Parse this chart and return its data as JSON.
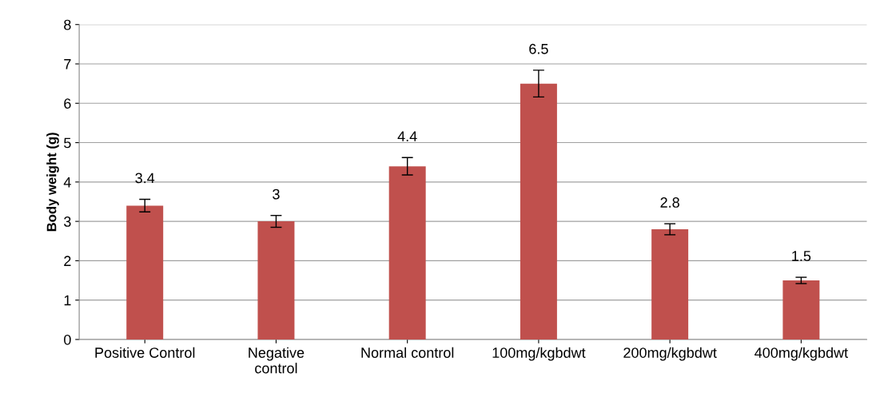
{
  "chart_data": {
    "type": "bar",
    "ylabel": "Body weight (g)",
    "categories": [
      "Positive Control",
      "Negative\ncontrol",
      "Normal control",
      "100mg/kgbdwt",
      "200mg/kgbdwt",
      "400mg/kgbdwt"
    ],
    "values": [
      3.4,
      3,
      4.4,
      6.5,
      2.8,
      1.5
    ],
    "errors": [
      0.16,
      0.15,
      0.22,
      0.34,
      0.14,
      0.08
    ],
    "color": "#c0504d",
    "ylim": [
      0,
      8
    ],
    "yticks": [
      0,
      1,
      2,
      3,
      4,
      5,
      6,
      7,
      8
    ],
    "grid": "y",
    "data_labels": true,
    "legend": false
  }
}
